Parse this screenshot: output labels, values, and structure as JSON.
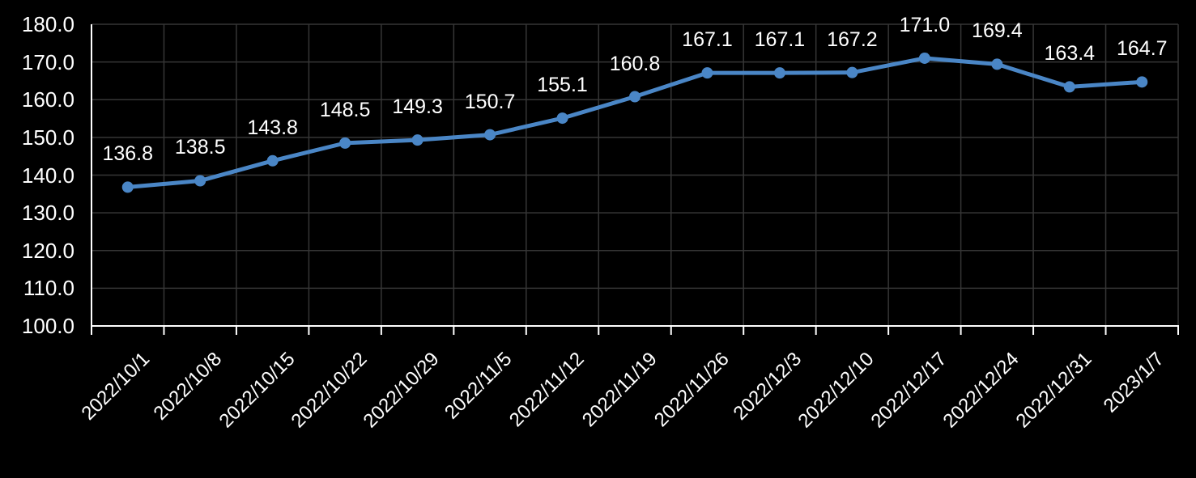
{
  "chart_data": {
    "type": "line",
    "title": "",
    "xlabel": "",
    "ylabel": "",
    "categories": [
      "2022/10/1",
      "2022/10/8",
      "2022/10/15",
      "2022/10/22",
      "2022/10/29",
      "2022/11/5",
      "2022/11/12",
      "2022/11/19",
      "2022/11/26",
      "2022/12/3",
      "2022/12/10",
      "2022/12/17",
      "2022/12/24",
      "2022/12/31",
      "2023/1/7"
    ],
    "values": [
      136.8,
      138.5,
      143.8,
      148.5,
      149.3,
      150.7,
      155.1,
      160.8,
      167.1,
      167.1,
      167.2,
      171.0,
      169.4,
      163.4,
      164.7
    ],
    "data_labels": [
      "136.8",
      "138.5",
      "143.8",
      "148.5",
      "149.3",
      "150.7",
      "155.1",
      "160.8",
      "167.1",
      "167.1",
      "167.2",
      "171.0",
      "169.4",
      "163.4",
      "164.7"
    ],
    "ylim": [
      100,
      180
    ],
    "ytick_step": 10,
    "ytick_labels": [
      "100.0",
      "110.0",
      "120.0",
      "130.0",
      "140.0",
      "150.0",
      "160.0",
      "170.0",
      "180.0"
    ],
    "grid": true,
    "legend_position": "none",
    "colors": {
      "background": "#000000",
      "series_line": "#4A86C6",
      "series_marker": "#4A86C6",
      "gridline": "#363636",
      "axis_line": "#FFFFFF",
      "text": "#FFFFFF"
    }
  }
}
